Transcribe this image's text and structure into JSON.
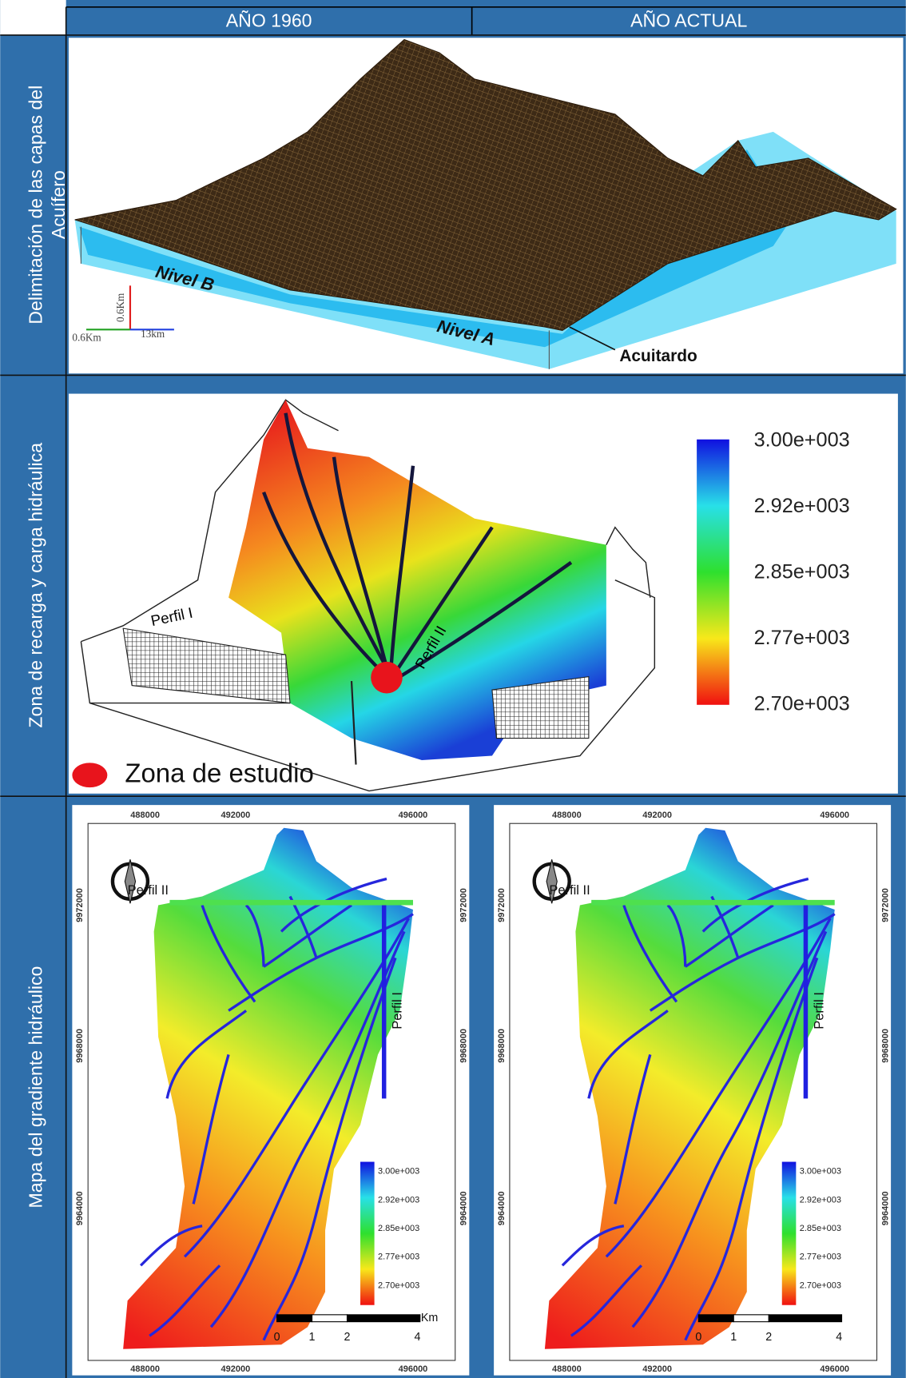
{
  "header": {
    "columns": [
      "AÑO 1960",
      "AÑO ACTUAL"
    ]
  },
  "rows": [
    {
      "label": [
        "Delimitación de las capas del",
        "Acuífero"
      ],
      "figure": {
        "layers": [
          "Nivel B",
          "Nivel A"
        ],
        "aquitard": "Acuitardo",
        "axes": [
          "0.6Km",
          "0.6Km",
          "13km"
        ]
      }
    },
    {
      "label": [
        "Zona de recarga y carga hidráulica"
      ],
      "figure": {
        "profiles": [
          "Perfil I",
          "Perfil II"
        ],
        "legend": [
          "3.00e+003",
          "2.92e+003",
          "2.85e+003",
          "2.77e+003",
          "2.70e+003"
        ],
        "marker": "Zona de estudio"
      }
    },
    {
      "label": [
        "Mapa del gradiente hidráulico"
      ],
      "maps": [
        {
          "x_coords": [
            "488000",
            "492000",
            "496000"
          ],
          "y_coords": [
            "9972000",
            "9968000",
            "9964000"
          ],
          "profiles": [
            "Perfil II",
            "Perfil I"
          ],
          "legend": [
            "3.00e+003",
            "2.92e+003",
            "2.85e+003",
            "2.77e+003",
            "2.70e+003"
          ],
          "scale": [
            "0",
            "1",
            "2",
            "4"
          ],
          "scale_unit": "Km"
        },
        {
          "x_coords": [
            "488000",
            "492000",
            "496000"
          ],
          "y_coords": [
            "9972000",
            "9968000",
            "9964000"
          ],
          "profiles": [
            "Perfil II",
            "Perfil I"
          ],
          "legend": [
            "3.00e+003",
            "2.92e+003",
            "2.85e+003",
            "2.77e+003",
            "2.70e+003"
          ],
          "scale": [
            "0",
            "1",
            "2",
            "4"
          ]
        }
      ]
    }
  ]
}
